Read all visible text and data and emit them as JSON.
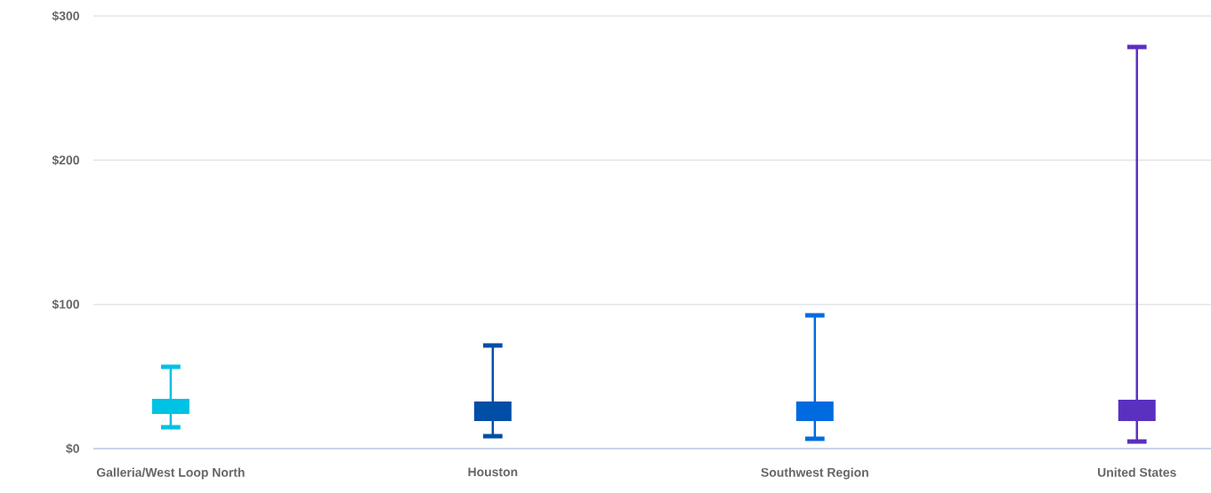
{
  "chart_data": {
    "type": "box",
    "categories": [
      "Galleria/West Loop North",
      "Houston",
      "Southwest Region",
      "United States"
    ],
    "boxes": [
      {
        "low": 14.8,
        "q1": 24,
        "q3": 34.5,
        "high": 56.7
      },
      {
        "low": 8.6,
        "q1": 19.1,
        "q3": 32.7,
        "high": 71.5
      },
      {
        "low": 6.8,
        "q1": 19.1,
        "q3": 32.7,
        "high": 92.4
      },
      {
        "low": 4.9,
        "q1": 19.1,
        "q3": 33.9,
        "high": 278.5
      }
    ],
    "colors": [
      "#00c2e4",
      "#004ea6",
      "#006be0",
      "#5a30c0"
    ],
    "ylim": [
      0,
      300
    ],
    "yticks": [
      {
        "value": 0,
        "label": "$0"
      },
      {
        "value": 100,
        "label": "$100"
      },
      {
        "value": 200,
        "label": "$200"
      },
      {
        "value": 300,
        "label": "$300"
      }
    ],
    "grid": "y"
  }
}
